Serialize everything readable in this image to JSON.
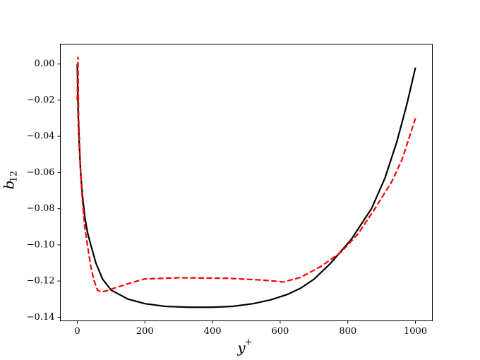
{
  "chart_data": {
    "type": "line",
    "xlabel": {
      "base": "y",
      "sup": "+"
    },
    "ylabel": {
      "base": "b",
      "sub": "12"
    },
    "xlim": [
      -50,
      1050
    ],
    "ylim": [
      -0.142,
      0.011
    ],
    "xticks": [
      0,
      200,
      400,
      600,
      800,
      1000
    ],
    "yticks": [
      {
        "value": 0,
        "label": "0.00"
      },
      {
        "value": -0.02,
        "label": "−0.02"
      },
      {
        "value": -0.04,
        "label": "−0.04"
      },
      {
        "value": -0.06,
        "label": "−0.06"
      },
      {
        "value": -0.08,
        "label": "−0.08"
      },
      {
        "value": -0.1,
        "label": "−0.10"
      },
      {
        "value": -0.12,
        "label": "−0.12"
      },
      {
        "value": -0.14,
        "label": "−0.14"
      }
    ],
    "grid": false,
    "series": [
      {
        "color": "#000000",
        "dash": false,
        "x": [
          0,
          3,
          6,
          10,
          15,
          22,
          30,
          40,
          55,
          75,
          100,
          150,
          200,
          260,
          330,
          400,
          460,
          520,
          570,
          620,
          660,
          700,
          750,
          810,
          870,
          910,
          945,
          975,
          1000
        ],
        "values": [
          0,
          -0.03,
          -0.045,
          -0.06,
          -0.072,
          -0.084,
          -0.093,
          -0.1,
          -0.11,
          -0.119,
          -0.125,
          -0.13,
          -0.1325,
          -0.134,
          -0.1345,
          -0.1345,
          -0.134,
          -0.1325,
          -0.1305,
          -0.1275,
          -0.124,
          -0.119,
          -0.11,
          -0.097,
          -0.08,
          -0.063,
          -0.043,
          -0.022,
          -0.002
        ]
      },
      {
        "color": "#ff0000",
        "dash": true,
        "x": [
          0,
          2,
          4,
          6,
          10,
          15,
          22,
          30,
          40,
          50,
          60,
          70,
          85,
          100,
          150,
          200,
          300,
          450,
          550,
          610,
          660,
          720,
          780,
          830,
          880,
          930,
          960,
          1000
        ],
        "values": [
          -0.02,
          0.004,
          -0.03,
          -0.04,
          -0.06,
          -0.075,
          -0.09,
          -0.1,
          -0.112,
          -0.12,
          -0.125,
          -0.126,
          -0.1255,
          -0.1245,
          -0.1215,
          -0.1188,
          -0.1182,
          -0.1185,
          -0.1195,
          -0.1205,
          -0.118,
          -0.112,
          -0.104,
          -0.094,
          -0.08,
          -0.065,
          -0.053,
          -0.03
        ]
      }
    ]
  }
}
